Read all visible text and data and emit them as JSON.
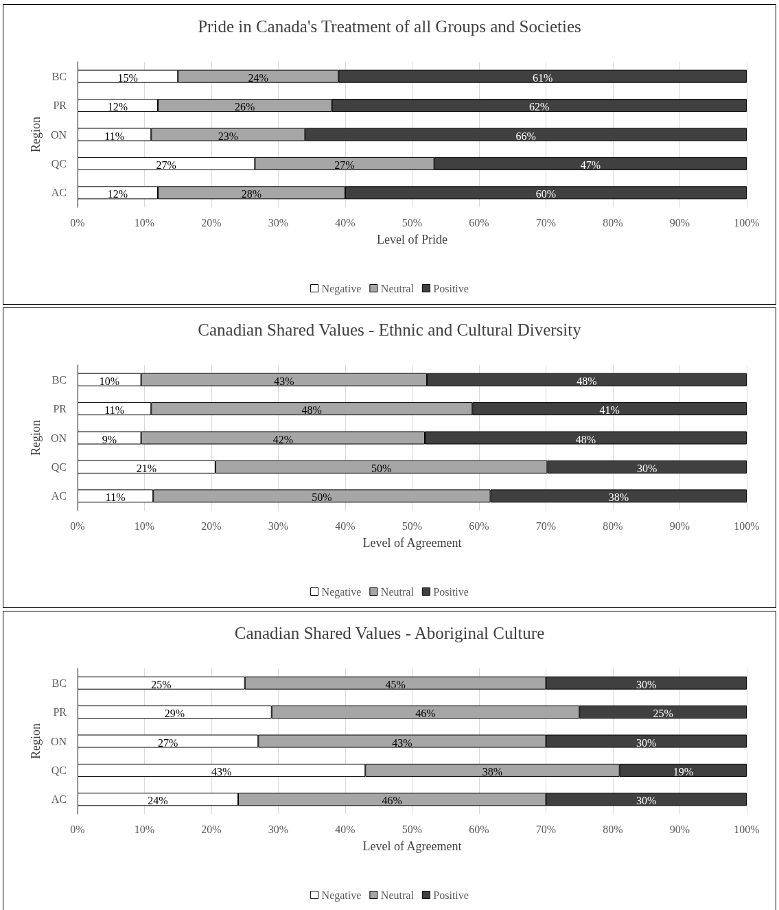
{
  "chart_data": [
    {
      "type": "bar",
      "orientation": "horizontal",
      "stacked": true,
      "title": "Pride in Canada's Treatment of all Groups and Societies",
      "xlabel": "Level of Pride",
      "ylabel": "Region",
      "categories": [
        "BC",
        "PR",
        "ON",
        "QC",
        "AC"
      ],
      "series": [
        {
          "name": "Negative",
          "color": "#ffffff",
          "values": [
            15,
            12,
            11,
            26.5,
            12
          ],
          "value_labels": [
            "15%",
            "12%",
            "11%",
            "27%",
            "12%"
          ]
        },
        {
          "name": "Neutral",
          "color": "#a6a6a6",
          "values": [
            24,
            26,
            23,
            26.8,
            28
          ],
          "value_labels": [
            "24%",
            "26%",
            "23%",
            "27%",
            "28%"
          ]
        },
        {
          "name": "Positive",
          "color": "#404040",
          "values": [
            61,
            62,
            66,
            46.7,
            60
          ],
          "value_labels": [
            "61%",
            "62%",
            "66%",
            "47%",
            "60%"
          ]
        }
      ],
      "xlim": [
        0,
        100
      ],
      "xticks": [
        {
          "value": 0,
          "label": "0%"
        },
        {
          "value": 10,
          "label": "10%"
        },
        {
          "value": 20,
          "label": "20%"
        },
        {
          "value": 30,
          "label": "30%"
        },
        {
          "value": 40,
          "label": "40%"
        },
        {
          "value": 50,
          "label": "50%"
        },
        {
          "value": 60,
          "label": "60%"
        },
        {
          "value": 70,
          "label": "70%"
        },
        {
          "value": 80,
          "label": "80%"
        },
        {
          "value": 90,
          "label": "90%"
        },
        {
          "value": 100,
          "label": "100%"
        }
      ],
      "grid": "x",
      "legend": "bottom"
    },
    {
      "type": "bar",
      "orientation": "horizontal",
      "stacked": true,
      "title": "Canadian Shared Values - Ethnic and Cultural Diversity",
      "xlabel": "Level of Agreement",
      "ylabel": "Region",
      "categories": [
        "BC",
        "PR",
        "ON",
        "QC",
        "AC"
      ],
      "series": [
        {
          "name": "Negative",
          "color": "#ffffff",
          "values": [
            9.5,
            11,
            9.5,
            20.6,
            11.3
          ],
          "value_labels": [
            "10%",
            "11%",
            "9%",
            "21%",
            "11%"
          ]
        },
        {
          "name": "Neutral",
          "color": "#a6a6a6",
          "values": [
            42.7,
            48,
            42.4,
            49.6,
            50.4
          ],
          "value_labels": [
            "43%",
            "48%",
            "42%",
            "50%",
            "50%"
          ]
        },
        {
          "name": "Positive",
          "color": "#404040",
          "values": [
            47.8,
            41,
            48.1,
            29.8,
            38.3
          ],
          "value_labels": [
            "48%",
            "41%",
            "48%",
            "30%",
            "38%"
          ]
        }
      ],
      "xlim": [
        0,
        100
      ],
      "xticks": [
        {
          "value": 0,
          "label": "0%"
        },
        {
          "value": 10,
          "label": "10%"
        },
        {
          "value": 20,
          "label": "20%"
        },
        {
          "value": 30,
          "label": "30%"
        },
        {
          "value": 40,
          "label": "40%"
        },
        {
          "value": 50,
          "label": "50%"
        },
        {
          "value": 60,
          "label": "60%"
        },
        {
          "value": 70,
          "label": "70%"
        },
        {
          "value": 80,
          "label": "80%"
        },
        {
          "value": 90,
          "label": "90%"
        },
        {
          "value": 100,
          "label": "100%"
        }
      ],
      "grid": "x",
      "legend": "bottom"
    },
    {
      "type": "bar",
      "orientation": "horizontal",
      "stacked": true,
      "title": "Canadian Shared Values - Aboriginal Culture",
      "xlabel": "Level of Agreement",
      "ylabel": "Region",
      "categories": [
        "BC",
        "PR",
        "ON",
        "QC",
        "AC"
      ],
      "series": [
        {
          "name": "Negative",
          "color": "#ffffff",
          "values": [
            25,
            29,
            27,
            43,
            24
          ],
          "value_labels": [
            "25%",
            "29%",
            "27%",
            "43%",
            "24%"
          ]
        },
        {
          "name": "Neutral",
          "color": "#a6a6a6",
          "values": [
            45,
            46,
            43,
            38,
            46
          ],
          "value_labels": [
            "45%",
            "46%",
            "43%",
            "38%",
            "46%"
          ]
        },
        {
          "name": "Positive",
          "color": "#404040",
          "values": [
            30,
            25,
            30,
            19,
            30
          ],
          "value_labels": [
            "30%",
            "25%",
            "30%",
            "19%",
            "30%"
          ]
        }
      ],
      "xlim": [
        0,
        100
      ],
      "xticks": [
        {
          "value": 0,
          "label": "0%"
        },
        {
          "value": 10,
          "label": "10%"
        },
        {
          "value": 20,
          "label": "20%"
        },
        {
          "value": 30,
          "label": "30%"
        },
        {
          "value": 40,
          "label": "40%"
        },
        {
          "value": 50,
          "label": "50%"
        },
        {
          "value": 60,
          "label": "60%"
        },
        {
          "value": 70,
          "label": "70%"
        },
        {
          "value": 80,
          "label": "80%"
        },
        {
          "value": 90,
          "label": "90%"
        },
        {
          "value": 100,
          "label": "100%"
        }
      ],
      "grid": "x",
      "legend": "bottom"
    }
  ]
}
